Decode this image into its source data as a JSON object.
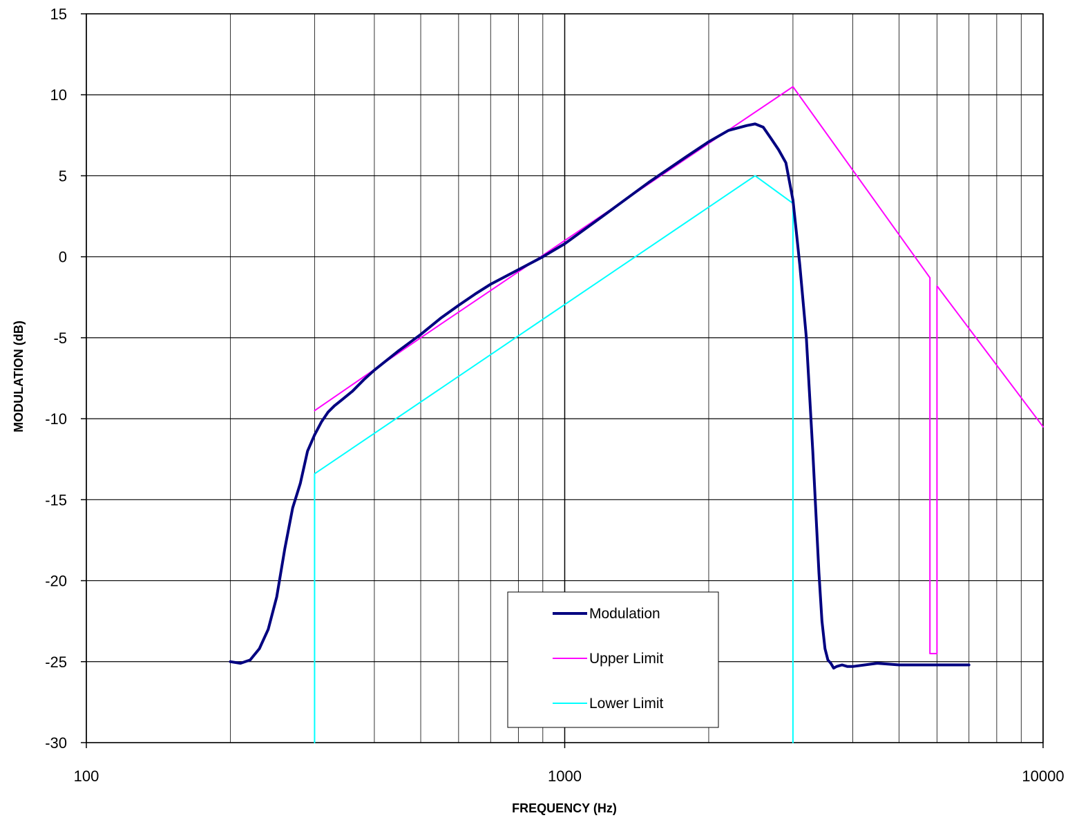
{
  "chart_data": {
    "type": "line",
    "title": "",
    "xlabel": "FREQUENCY (Hz)",
    "ylabel": "MODULATION (dB)",
    "x_scale": "log",
    "xlim": [
      100,
      10000
    ],
    "ylim": [
      -30,
      15
    ],
    "x_ticks": [
      100,
      1000,
      10000
    ],
    "y_ticks": [
      15,
      10,
      5,
      0,
      -5,
      -10,
      -15,
      -20,
      -25,
      -30
    ],
    "grid": true,
    "legend_position": "bottom-center",
    "series": [
      {
        "name": "Modulation",
        "color": "#000080",
        "width": 4,
        "x": [
          200,
          210,
          220,
          230,
          240,
          250,
          260,
          270,
          280,
          290,
          300,
          310,
          320,
          330,
          340,
          360,
          380,
          400,
          450,
          500,
          550,
          600,
          650,
          700,
          800,
          900,
          1000,
          1200,
          1500,
          1800,
          2000,
          2200,
          2400,
          2500,
          2600,
          2700,
          2800,
          2900,
          3000,
          3050,
          3100,
          3200,
          3300,
          3400,
          3450,
          3500,
          3550,
          3600,
          3650,
          3700,
          3800,
          3900,
          4000,
          4500,
          5000,
          5500,
          6000,
          6500,
          7000
        ],
        "y": [
          -25.0,
          -25.1,
          -24.9,
          -24.2,
          -23.0,
          -21.0,
          -18.0,
          -15.5,
          -14.0,
          -12.0,
          -11.0,
          -10.2,
          -9.6,
          -9.2,
          -8.9,
          -8.3,
          -7.6,
          -7.0,
          -5.8,
          -4.8,
          -3.8,
          -3.0,
          -2.3,
          -1.7,
          -0.8,
          0.0,
          0.8,
          2.5,
          4.6,
          6.2,
          7.1,
          7.8,
          8.1,
          8.2,
          8.0,
          7.3,
          6.6,
          5.8,
          3.5,
          1.5,
          -0.5,
          -5.0,
          -12.0,
          -19.5,
          -22.5,
          -24.2,
          -24.9,
          -25.1,
          -25.4,
          -25.3,
          -25.2,
          -25.3,
          -25.3,
          -25.1,
          -25.2,
          -25.2,
          -25.2,
          -25.2,
          -25.2
        ]
      },
      {
        "name": "Upper Limit",
        "color": "#ff00ff",
        "width": 2,
        "x": [
          300,
          500,
          1000,
          2000,
          3000,
          5800,
          5800,
          6000,
          6000,
          10000
        ],
        "y": [
          -9.5,
          -5.0,
          1.0,
          7.0,
          10.5,
          -1.3,
          -24.5,
          -24.5,
          -1.8,
          -10.5
        ]
      },
      {
        "name": "Lower Limit",
        "color": "#00ffff",
        "width": 2,
        "x": [
          300,
          300,
          2500,
          3000,
          3000
        ],
        "y": [
          -30,
          -13.4,
          5.0,
          3.3,
          -30
        ]
      }
    ]
  }
}
